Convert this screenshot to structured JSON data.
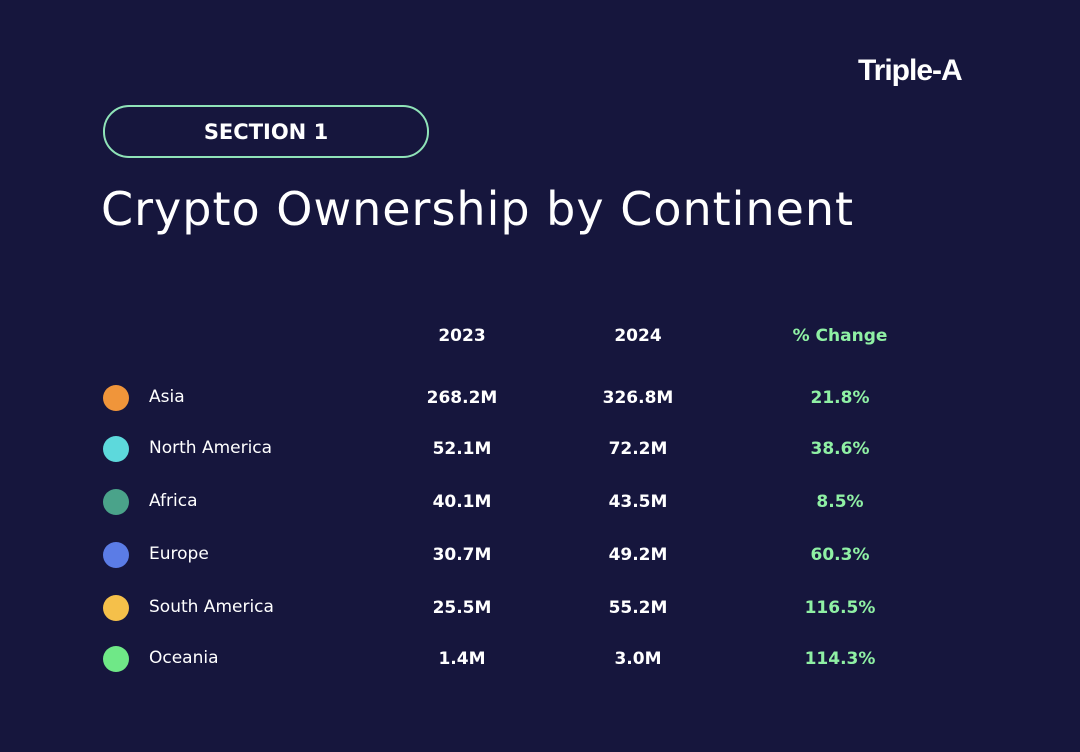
{
  "brand": {
    "logo": "Triple-A"
  },
  "section": {
    "label": "SECTION 1"
  },
  "header": {
    "title": "Crypto Ownership by Continent"
  },
  "colors": {
    "background": "#16163d",
    "accent_green": "#8ff0a4",
    "pill_border": "#8fe3b8"
  },
  "chart_data": {
    "type": "table",
    "title": "Crypto Ownership by Continent",
    "columns": [
      "",
      "2023",
      "2024",
      "% Change"
    ],
    "rows": [
      {
        "continent": "Asia",
        "v2023": "268.2M",
        "v2024": "326.8M",
        "change": "21.8%",
        "color": "#f0953a"
      },
      {
        "continent": "North America",
        "v2023": "52.1M",
        "v2024": "72.2M",
        "change": "38.6%",
        "color": "#5dd9dc"
      },
      {
        "continent": "Africa",
        "v2023": "40.1M",
        "v2024": "43.5M",
        "change": "8.5%",
        "color": "#4aa38a"
      },
      {
        "continent": "Europe",
        "v2023": "30.7M",
        "v2024": "49.2M",
        "change": "60.3%",
        "color": "#5b7ce6"
      },
      {
        "continent": "South America",
        "v2023": "25.5M",
        "v2024": "55.2M",
        "change": "116.5%",
        "color": "#f5c04a"
      },
      {
        "continent": "Oceania",
        "v2023": "1.4M",
        "v2024": "3.0M",
        "change": "114.3%",
        "color": "#6fe887"
      }
    ]
  }
}
